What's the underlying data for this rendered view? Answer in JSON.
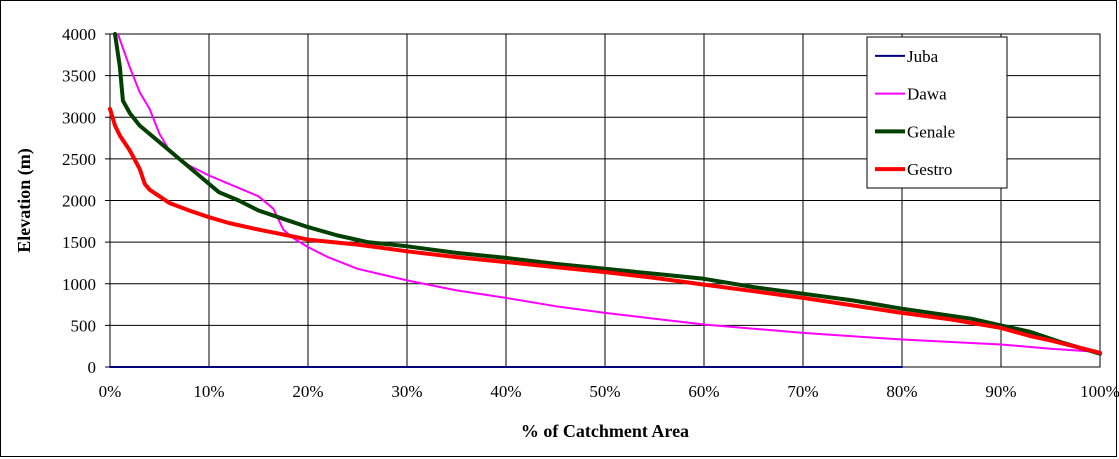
{
  "chart_data": {
    "type": "line",
    "title": "",
    "xlabel": "% of Catchment Area",
    "ylabel": "Elevation  (m)",
    "xlim": [
      0,
      100
    ],
    "ylim": [
      0,
      4000
    ],
    "x_ticks": [
      "0%",
      "10%",
      "20%",
      "30%",
      "40%",
      "50%",
      "60%",
      "70%",
      "80%",
      "90%",
      "100%"
    ],
    "y_ticks": [
      "0",
      "500",
      "1000",
      "1500",
      "2000",
      "2500",
      "3000",
      "3500",
      "4000"
    ],
    "grid": true,
    "legend_position": "top-right",
    "series": [
      {
        "name": "Juba",
        "color": "#000080",
        "width": 2,
        "points": [
          [
            0,
            0
          ],
          [
            80,
            0
          ]
        ]
      },
      {
        "name": "Dawa",
        "color": "#ff00ff",
        "width": 2,
        "points": [
          [
            0.8,
            4000
          ],
          [
            2,
            3600
          ],
          [
            3,
            3300
          ],
          [
            4,
            3100
          ],
          [
            5,
            2800
          ],
          [
            6,
            2600
          ],
          [
            8,
            2420
          ],
          [
            10,
            2300
          ],
          [
            12,
            2200
          ],
          [
            15,
            2050
          ],
          [
            16.5,
            1900
          ],
          [
            17.5,
            1650
          ],
          [
            18.5,
            1550
          ],
          [
            20,
            1440
          ],
          [
            22,
            1320
          ],
          [
            25,
            1180
          ],
          [
            30,
            1040
          ],
          [
            35,
            920
          ],
          [
            40,
            830
          ],
          [
            45,
            730
          ],
          [
            50,
            650
          ],
          [
            55,
            580
          ],
          [
            60,
            510
          ],
          [
            65,
            460
          ],
          [
            70,
            410
          ],
          [
            75,
            370
          ],
          [
            80,
            330
          ],
          [
            85,
            300
          ],
          [
            90,
            270
          ],
          [
            95,
            220
          ],
          [
            100,
            180
          ]
        ]
      },
      {
        "name": "Genale",
        "color": "#004000",
        "width": 4,
        "points": [
          [
            0.5,
            4000
          ],
          [
            1,
            3600
          ],
          [
            1.3,
            3200
          ],
          [
            2,
            3050
          ],
          [
            3,
            2900
          ],
          [
            5,
            2700
          ],
          [
            7,
            2500
          ],
          [
            9,
            2300
          ],
          [
            11,
            2100
          ],
          [
            13,
            2000
          ],
          [
            15,
            1880
          ],
          [
            17,
            1800
          ],
          [
            20,
            1680
          ],
          [
            23,
            1580
          ],
          [
            26,
            1500
          ],
          [
            30,
            1450
          ],
          [
            35,
            1370
          ],
          [
            40,
            1310
          ],
          [
            45,
            1240
          ],
          [
            50,
            1180
          ],
          [
            55,
            1120
          ],
          [
            60,
            1060
          ],
          [
            65,
            960
          ],
          [
            70,
            880
          ],
          [
            75,
            800
          ],
          [
            80,
            700
          ],
          [
            87,
            580
          ],
          [
            90,
            500
          ],
          [
            93,
            420
          ],
          [
            96,
            300
          ],
          [
            100,
            160
          ]
        ]
      },
      {
        "name": "Gestro",
        "color": "#ff0000",
        "width": 4,
        "points": [
          [
            0,
            3100
          ],
          [
            0.5,
            2900
          ],
          [
            1,
            2780
          ],
          [
            2,
            2600
          ],
          [
            3,
            2380
          ],
          [
            3.5,
            2200
          ],
          [
            4,
            2130
          ],
          [
            5,
            2050
          ],
          [
            6,
            1970
          ],
          [
            8,
            1880
          ],
          [
            10,
            1800
          ],
          [
            12,
            1730
          ],
          [
            15,
            1650
          ],
          [
            18,
            1580
          ],
          [
            20,
            1530
          ],
          [
            25,
            1470
          ],
          [
            30,
            1390
          ],
          [
            35,
            1320
          ],
          [
            40,
            1260
          ],
          [
            45,
            1200
          ],
          [
            50,
            1140
          ],
          [
            55,
            1070
          ],
          [
            60,
            990
          ],
          [
            65,
            910
          ],
          [
            70,
            830
          ],
          [
            75,
            740
          ],
          [
            80,
            650
          ],
          [
            85,
            570
          ],
          [
            90,
            470
          ],
          [
            93,
            370
          ],
          [
            95,
            320
          ],
          [
            100,
            170
          ]
        ]
      }
    ]
  }
}
